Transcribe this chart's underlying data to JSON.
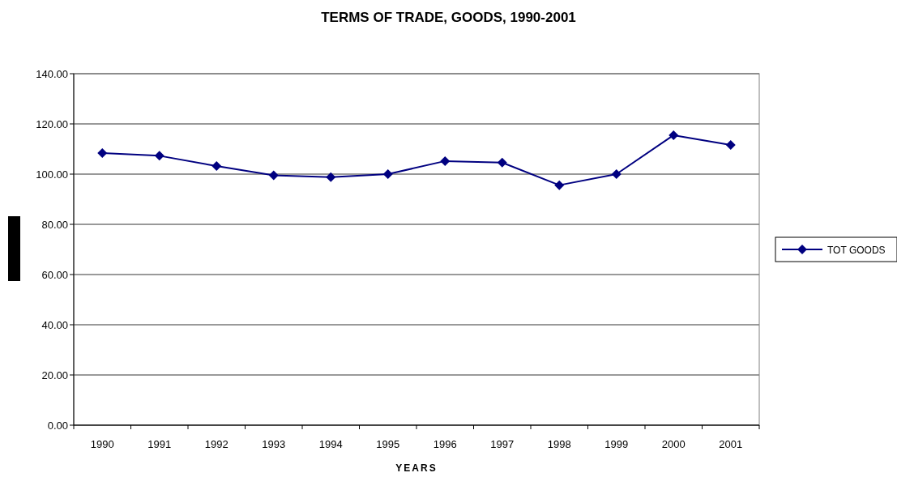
{
  "chart_data": {
    "type": "line",
    "title": "TERMS OF TRADE, GOODS, 1990-2001",
    "xlabel": "YEARS",
    "categories": [
      "1990",
      "1991",
      "1992",
      "1993",
      "1994",
      "1995",
      "1996",
      "1997",
      "1998",
      "1999",
      "2000",
      "2001"
    ],
    "series": [
      {
        "name": "TOT GOODS",
        "color": "#000080",
        "values": [
          108.4,
          107.3,
          103.2,
          99.5,
          98.8,
          100.0,
          105.2,
          104.6,
          95.6,
          100.0,
          115.5,
          111.6
        ]
      }
    ],
    "ylim": [
      0,
      140
    ],
    "yticks": [
      {
        "value": 0,
        "label": "0.00"
      },
      {
        "value": 20,
        "label": "20.00"
      },
      {
        "value": 40,
        "label": "40.00"
      },
      {
        "value": 60,
        "label": "60.00"
      },
      {
        "value": 80,
        "label": "80.00"
      },
      {
        "value": 100,
        "label": "100.00"
      },
      {
        "value": 120,
        "label": "120.00"
      },
      {
        "value": 140,
        "label": "140.00"
      }
    ],
    "grid": "y",
    "legend": "right",
    "marker": "diamond",
    "line_style": "solid"
  }
}
